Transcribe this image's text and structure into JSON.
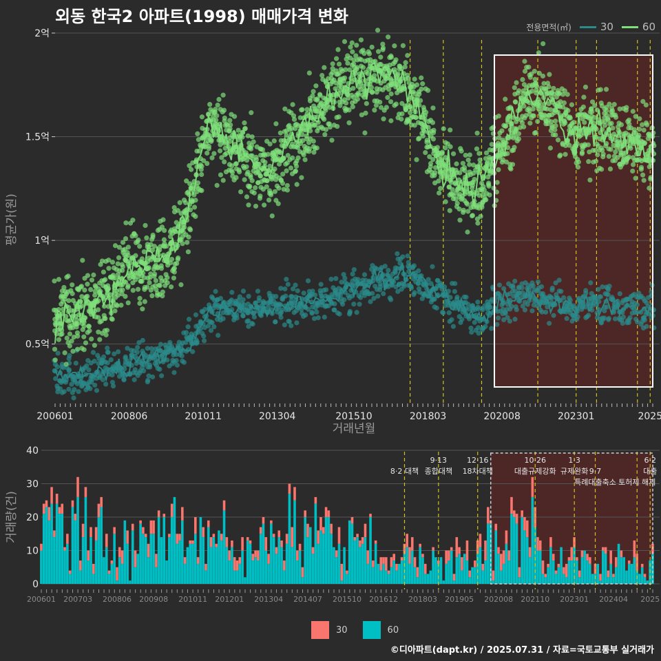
{
  "title": "외동 한국2 아파트(1998) 매매가격 변화",
  "credit": "©디아파트(dapt.kr) / 2025.07.31 / 자료=국토교통부 실거래가",
  "colors": {
    "background": "#2b2b2b",
    "series_30_line": "#2b8a8a",
    "series_60_line": "#7fe07a",
    "bar_30": "#f8766d",
    "bar_60": "#00bfc4",
    "policy_line": "#d4c21a",
    "highlight_fill": "#5a2525"
  },
  "legend_top": {
    "title": "전용면적(㎡)",
    "items": [
      {
        "label": "30",
        "color": "#2b8a8a"
      },
      {
        "label": "60",
        "color": "#7fe07a"
      }
    ]
  },
  "legend_bottom": {
    "items": [
      {
        "label": "30",
        "color": "#f8766d"
      },
      {
        "label": "60",
        "color": "#00bfc4"
      }
    ]
  },
  "chart_data": [
    {
      "type": "line",
      "ylabel": "평균가(원)",
      "xlabel": "거래년월",
      "x_range": [
        "2006-01",
        "2025-07"
      ],
      "ylim": [
        20000000.0,
        200000000.0
      ],
      "y_ticks": [
        {
          "value": 50000000,
          "label": "0.5억"
        },
        {
          "value": 100000000,
          "label": "1억"
        },
        {
          "value": 150000000,
          "label": "1.5억"
        },
        {
          "value": 200000000,
          "label": "2억"
        }
      ],
      "x_ticks": [
        {
          "date": "2006-01",
          "label": "200601"
        },
        {
          "date": "2008-06",
          "label": "200806"
        },
        {
          "date": "2010-11",
          "label": "201011"
        },
        {
          "date": "2013-04",
          "label": "201304"
        },
        {
          "date": "2015-10",
          "label": "201510"
        },
        {
          "date": "2018-03",
          "label": "201803"
        },
        {
          "date": "2020-08",
          "label": "202008"
        },
        {
          "date": "2023-01",
          "label": "202301"
        },
        {
          "date": "2025-06",
          "label": "2025"
        }
      ],
      "policy_dates": [
        "2017-08",
        "2018-09",
        "2019-12",
        "2021-10",
        "2023-01",
        "2023-09",
        "2025-01",
        "2025-06"
      ],
      "highlight": {
        "start": "2020-05",
        "end": "2025-07"
      },
      "series": [
        {
          "name": "30",
          "points": [
            [
              "2006-01",
              35000000
            ],
            [
              "2007-01",
              35000000
            ],
            [
              "2008-01",
              38000000
            ],
            [
              "2009-01",
              42000000
            ],
            [
              "2010-01",
              47000000
            ],
            [
              "2010-06",
              50000000
            ],
            [
              "2011-01",
              65000000
            ],
            [
              "2011-06",
              69000000
            ],
            [
              "2012-01",
              67000000
            ],
            [
              "2013-01",
              67000000
            ],
            [
              "2014-01",
              70000000
            ],
            [
              "2015-01",
              72000000
            ],
            [
              "2016-01",
              77000000
            ],
            [
              "2016-06",
              80000000
            ],
            [
              "2017-01",
              82000000
            ],
            [
              "2017-06",
              84000000
            ],
            [
              "2018-01",
              80000000
            ],
            [
              "2018-06",
              75000000
            ],
            [
              "2019-01",
              70000000
            ],
            [
              "2019-06",
              67000000
            ],
            [
              "2020-01",
              62000000
            ],
            [
              "2020-06",
              70000000
            ],
            [
              "2021-01",
              72000000
            ],
            [
              "2021-06",
              73000000
            ],
            [
              "2022-01",
              72000000
            ],
            [
              "2022-06",
              70000000
            ],
            [
              "2023-01",
              68000000
            ],
            [
              "2023-06",
              70000000
            ],
            [
              "2024-01",
              69000000
            ],
            [
              "2024-06",
              68000000
            ],
            [
              "2025-01",
              66000000
            ],
            [
              "2025-07",
              68000000
            ]
          ]
        },
        {
          "name": "60",
          "points": [
            [
              "2006-01",
              60000000
            ],
            [
              "2006-06",
              62000000
            ],
            [
              "2007-01",
              65000000
            ],
            [
              "2007-06",
              70000000
            ],
            [
              "2008-01",
              78000000
            ],
            [
              "2008-06",
              90000000
            ],
            [
              "2009-01",
              88000000
            ],
            [
              "2009-06",
              90000000
            ],
            [
              "2010-01",
              100000000
            ],
            [
              "2010-06",
              120000000
            ],
            [
              "2011-01",
              155000000
            ],
            [
              "2011-06",
              150000000
            ],
            [
              "2012-01",
              143000000
            ],
            [
              "2012-06",
              140000000
            ],
            [
              "2013-01",
              133000000
            ],
            [
              "2013-06",
              140000000
            ],
            [
              "2014-01",
              150000000
            ],
            [
              "2014-06",
              158000000
            ],
            [
              "2015-01",
              168000000
            ],
            [
              "2015-06",
              175000000
            ],
            [
              "2016-01",
              178000000
            ],
            [
              "2016-06",
              180000000
            ],
            [
              "2017-01",
              180000000
            ],
            [
              "2017-06",
              175000000
            ],
            [
              "2018-01",
              158000000
            ],
            [
              "2018-06",
              140000000
            ],
            [
              "2019-01",
              130000000
            ],
            [
              "2019-06",
              125000000
            ],
            [
              "2020-01",
              130000000
            ],
            [
              "2020-06",
              140000000
            ],
            [
              "2021-01",
              158000000
            ],
            [
              "2021-06",
              170000000
            ],
            [
              "2022-01",
              168000000
            ],
            [
              "2022-06",
              160000000
            ],
            [
              "2023-01",
              150000000
            ],
            [
              "2023-06",
              155000000
            ],
            [
              "2024-01",
              152000000
            ],
            [
              "2024-06",
              148000000
            ],
            [
              "2025-01",
              146000000
            ],
            [
              "2025-07",
              145000000
            ]
          ]
        }
      ]
    },
    {
      "type": "bar",
      "stacked": true,
      "ylabel": "거래량(건)",
      "ylim": [
        0,
        40
      ],
      "y_ticks": [
        0,
        10,
        20,
        30,
        40
      ],
      "x_range": [
        "2006-01",
        "2025-07"
      ],
      "x_ticks": [
        {
          "date": "2006-01",
          "label": "200601"
        },
        {
          "date": "2007-03",
          "label": "200703"
        },
        {
          "date": "2008-06",
          "label": "200806"
        },
        {
          "date": "2009-08",
          "label": "200908"
        },
        {
          "date": "2010-11",
          "label": "201011"
        },
        {
          "date": "2012-01",
          "label": "201201"
        },
        {
          "date": "2013-04",
          "label": "201304"
        },
        {
          "date": "2014-07",
          "label": "201407"
        },
        {
          "date": "2015-10",
          "label": "201510"
        },
        {
          "date": "2016-12",
          "label": "201612"
        },
        {
          "date": "2018-03",
          "label": "201803"
        },
        {
          "date": "2019-05",
          "label": "201905"
        },
        {
          "date": "2020-08",
          "label": "202008"
        },
        {
          "date": "2021-10",
          "label": "202110"
        },
        {
          "date": "2023-01",
          "label": "202301"
        },
        {
          "date": "2024-04",
          "label": "202404"
        },
        {
          "date": "2025-06",
          "label": "2025"
        }
      ],
      "highlight": {
        "start": "2020-05",
        "end": "2025-07"
      },
      "annotations": [
        {
          "date": "2017-08",
          "text": "8·2 대책",
          "row": 1
        },
        {
          "date": "2018-09",
          "text": "9·13",
          "row": 0
        },
        {
          "date": "2018-09",
          "text": "종합대책",
          "row": 1
        },
        {
          "date": "2019-12",
          "text": "12·16",
          "row": 0
        },
        {
          "date": "2019-12",
          "text": "18차대책",
          "row": 1
        },
        {
          "date": "2021-10",
          "text": "10·26",
          "row": 0
        },
        {
          "date": "2021-10",
          "text": "대출규제강화",
          "row": 1
        },
        {
          "date": "2023-01",
          "text": "1·3",
          "row": 0
        },
        {
          "date": "2023-01",
          "text": "규제완화",
          "row": 1
        },
        {
          "date": "2023-09",
          "text": "9·7",
          "row": 1
        },
        {
          "date": "2023-09",
          "text": "특례대출축소",
          "row": 2
        },
        {
          "date": "2025-01",
          "text": "토허제 해제",
          "row": 2
        },
        {
          "date": "2025-06",
          "text": "6·2",
          "row": 0
        },
        {
          "date": "2025-06",
          "text": "대출",
          "row": 1
        }
      ],
      "yearly_avg_monthly": [
        {
          "year": 2006,
          "s30": 3,
          "s60": 15
        },
        {
          "year": 2007,
          "s30": 3,
          "s60": 16
        },
        {
          "year": 2008,
          "s30": 2,
          "s60": 12
        },
        {
          "year": 2009,
          "s30": 2,
          "s60": 11
        },
        {
          "year": 2010,
          "s30": 2,
          "s60": 14
        },
        {
          "year": 2011,
          "s30": 2,
          "s60": 12
        },
        {
          "year": 2012,
          "s30": 2,
          "s60": 9
        },
        {
          "year": 2013,
          "s30": 2,
          "s60": 14
        },
        {
          "year": 2014,
          "s30": 2,
          "s60": 13
        },
        {
          "year": 2015,
          "s30": 2,
          "s60": 14
        },
        {
          "year": 2016,
          "s30": 2,
          "s60": 11
        },
        {
          "year": 2017,
          "s30": 2,
          "s60": 7
        },
        {
          "year": 2018,
          "s30": 1,
          "s60": 6
        },
        {
          "year": 2019,
          "s30": 2,
          "s60": 7
        },
        {
          "year": 2020,
          "s30": 3,
          "s60": 10
        },
        {
          "year": 2021,
          "s30": 4,
          "s60": 14
        },
        {
          "year": 2022,
          "s30": 2,
          "s60": 6
        },
        {
          "year": 2023,
          "s30": 2,
          "s60": 6
        },
        {
          "year": 2024,
          "s30": 2,
          "s60": 6
        },
        {
          "year": 2025,
          "s30": 2,
          "s60": 6
        }
      ]
    }
  ]
}
